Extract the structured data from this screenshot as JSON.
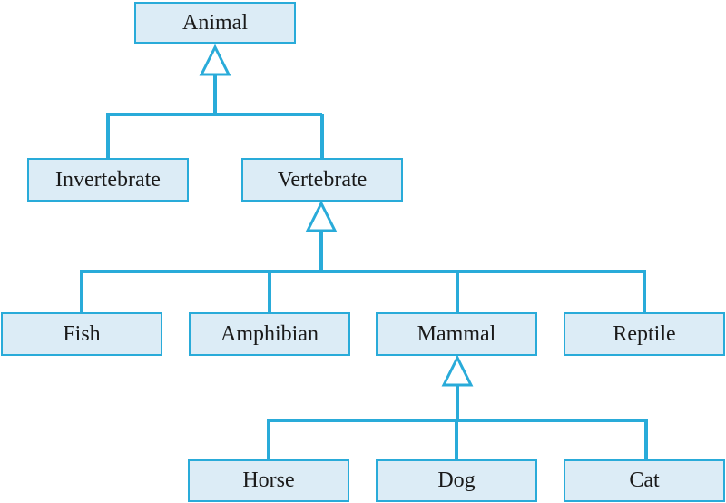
{
  "nodes": {
    "animal": "Animal",
    "invertebrate": "Invertebrate",
    "vertebrate": "Vertebrate",
    "fish": "Fish",
    "amphibian": "Amphibian",
    "mammal": "Mammal",
    "reptile": "Reptile",
    "horse": "Horse",
    "dog": "Dog",
    "cat": "Cat"
  },
  "edges": [
    {
      "from": "invertebrate",
      "to": "animal",
      "type": "inheritance"
    },
    {
      "from": "vertebrate",
      "to": "animal",
      "type": "inheritance"
    },
    {
      "from": "fish",
      "to": "vertebrate",
      "type": "inheritance"
    },
    {
      "from": "amphibian",
      "to": "vertebrate",
      "type": "inheritance"
    },
    {
      "from": "mammal",
      "to": "vertebrate",
      "type": "inheritance"
    },
    {
      "from": "reptile",
      "to": "vertebrate",
      "type": "inheritance"
    },
    {
      "from": "horse",
      "to": "mammal",
      "type": "inheritance"
    },
    {
      "from": "dog",
      "to": "mammal",
      "type": "inheritance"
    },
    {
      "from": "cat",
      "to": "mammal",
      "type": "inheritance"
    }
  ],
  "colors": {
    "box_fill": "#dcecf6",
    "connector": "#29abd9",
    "text": "#1a1a1a"
  }
}
